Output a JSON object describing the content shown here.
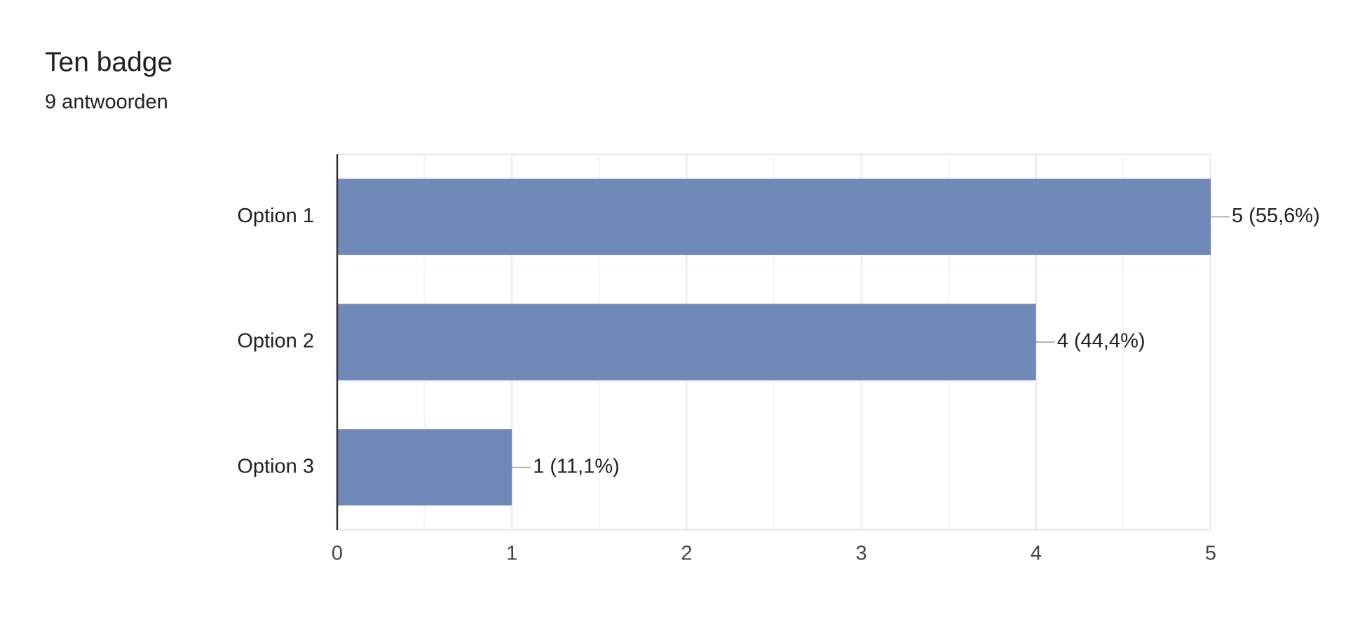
{
  "chart_data": {
    "type": "bar",
    "orientation": "horizontal",
    "title": "Ten badge",
    "subtitle": "9 antwoorden",
    "categories": [
      "Option 1",
      "Option 2",
      "Option 3"
    ],
    "values": [
      5,
      4,
      1
    ],
    "value_labels": [
      "5 (55,6%)",
      "4 (44,4%)",
      "1 (11,1%)"
    ],
    "color": "#7089b8",
    "xlim": [
      0,
      5
    ],
    "xticks": [
      0,
      1,
      2,
      3,
      4,
      5
    ],
    "grid": true
  }
}
